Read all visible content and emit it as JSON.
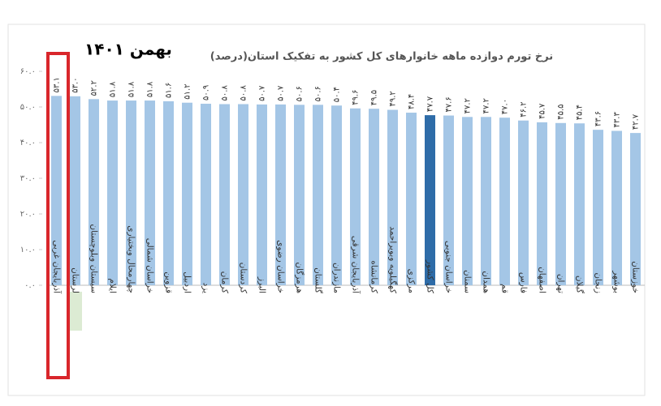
{
  "chart_data": {
    "type": "bar",
    "title": "نرخ تورم دوازده ماهه خانوارهای کل کشور به تفکیک استان(درصد)",
    "subtitle": "بهمن ۱۴۰۱",
    "categories": [
      "آذربایجان غربی",
      "لرستان",
      "سیستان وبلوچستان",
      "ایلام",
      "چهارمحال وبختیاری",
      "خراسان شمالی",
      "قزوین",
      "اردبیل",
      "یزد",
      "کرمان",
      "کردستان",
      "البرز",
      "خراسان رضوی",
      "هرمزگان",
      "گلستان",
      "مازندران",
      "آذربایجان شرقی",
      "کرمانشاه",
      "کهگیلویه وبویراحمد",
      "مرکزی",
      "کل کشور",
      "خراسان جنوبی",
      "سمنان",
      "همدان",
      "قم",
      "فارس",
      "اصفهان",
      "تهران",
      "گیلان",
      "زنجان",
      "بوشهر",
      "خوزستان"
    ],
    "values": [
      53.1,
      53.0,
      52.2,
      51.8,
      51.8,
      51.8,
      51.6,
      51.2,
      50.9,
      50.8,
      50.8,
      50.7,
      50.7,
      50.6,
      50.6,
      50.4,
      49.6,
      49.5,
      49.2,
      48.4,
      47.7,
      47.6,
      47.2,
      47.2,
      47.0,
      46.2,
      45.7,
      45.5,
      45.4,
      43.6,
      43.3,
      42.7
    ],
    "value_labels": [
      "۵۳.۱",
      "۵۳.۰",
      "۵۲.۲",
      "۵۱.۸",
      "۵۱.۸",
      "۵۱.۸",
      "۵۱.۶",
      "۵۱.۲",
      "۵۰.۹",
      "۵۰.۸",
      "۵۰.۸",
      "۵۰.۷",
      "۵۰.۷",
      "۵۰.۶",
      "۵۰.۶",
      "۵۰.۴",
      "۴۹.۶",
      "۴۹.۵",
      "۴۹.۲",
      "۴۸.۴",
      "۴۷.۷",
      "۴۷.۶",
      "۴۷.۲",
      "۴۷.۲",
      "۴۷.۰",
      "۴۶.۲",
      "۴۵.۷",
      "۴۵.۵",
      "۴۵.۴",
      "۴۳.۶",
      "۴۳.۳",
      "۴۲.۷"
    ],
    "colors": [
      "#a4c6e6",
      "#a4c6e6",
      "#a4c6e6",
      "#a4c6e6",
      "#a4c6e6",
      "#a4c6e6",
      "#a4c6e6",
      "#a4c6e6",
      "#a4c6e6",
      "#a4c6e6",
      "#a4c6e6",
      "#a4c6e6",
      "#a4c6e6",
      "#a4c6e6",
      "#a4c6e6",
      "#a4c6e6",
      "#a4c6e6",
      "#a4c6e6",
      "#a4c6e6",
      "#a4c6e6",
      "#2e6ca8",
      "#a4c6e6",
      "#a4c6e6",
      "#a4c6e6",
      "#a4c6e6",
      "#a4c6e6",
      "#a4c6e6",
      "#a4c6e6",
      "#a4c6e6",
      "#a4c6e6",
      "#a4c6e6",
      "#a4c6e6"
    ],
    "ylim": [
      0,
      60
    ],
    "yticks": [
      {
        "value": 0,
        "label": "۰.۰"
      },
      {
        "value": 10,
        "label": "۱۰.۰"
      },
      {
        "value": 20,
        "label": "۲۰.۰"
      },
      {
        "value": 30,
        "label": "۳۰.۰"
      },
      {
        "value": 40,
        "label": "۴۰.۰"
      },
      {
        "value": 50,
        "label": "۵۰.۰"
      },
      {
        "value": 60,
        "label": "۶۰.۰"
      }
    ],
    "grid": false
  }
}
